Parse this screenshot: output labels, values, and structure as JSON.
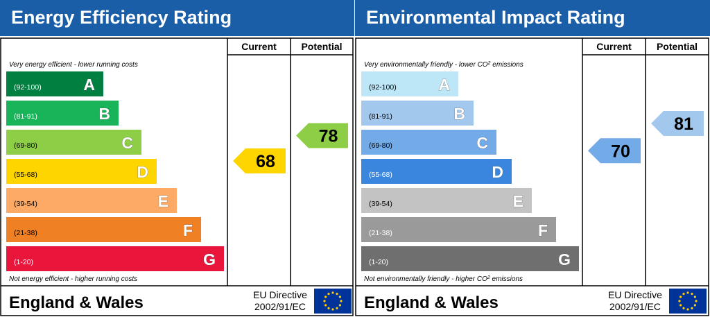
{
  "chart_data": [
    {
      "type": "bar",
      "title": "Energy Efficiency Rating",
      "columns": {
        "current": "Current",
        "potential": "Potential"
      },
      "top_note": "Very energy efficient - lower running costs",
      "bottom_note": "Not energy efficient - higher running costs",
      "bands": [
        {
          "letter": "A",
          "range": "(92-100)",
          "color": "#008040"
        },
        {
          "letter": "B",
          "range": "(81-91)",
          "color": "#19b459"
        },
        {
          "letter": "C",
          "range": "(69-80)",
          "color": "#8dce46"
        },
        {
          "letter": "D",
          "range": "(55-68)",
          "color": "#ffd500"
        },
        {
          "letter": "E",
          "range": "(39-54)",
          "color": "#fcaa65"
        },
        {
          "letter": "F",
          "range": "(21-38)",
          "color": "#ef8023"
        },
        {
          "letter": "G",
          "range": "(1-20)",
          "color": "#e9153b"
        }
      ],
      "current": {
        "value": 68,
        "band": "D",
        "color": "#ffd500"
      },
      "potential": {
        "value": 78,
        "band": "C",
        "color": "#8dce46"
      },
      "footer": {
        "region": "England & Wales",
        "directive_line1": "EU Directive",
        "directive_line2": "2002/91/EC"
      }
    },
    {
      "type": "bar",
      "title": "Environmental Impact Rating",
      "columns": {
        "current": "Current",
        "potential": "Potential"
      },
      "top_note_prefix": "Very environmentally friendly - lower CO",
      "top_note_sup": "2",
      "top_note_suffix": " emissions",
      "bottom_note_prefix": "Not environmentally friendly - higher CO",
      "bottom_note_sup": "2",
      "bottom_note_suffix": " emissions",
      "bands": [
        {
          "letter": "A",
          "range": "(92-100)",
          "color": "#bde6f7"
        },
        {
          "letter": "B",
          "range": "(81-91)",
          "color": "#a3c8ee"
        },
        {
          "letter": "C",
          "range": "(69-80)",
          "color": "#73aae8"
        },
        {
          "letter": "D",
          "range": "(55-68)",
          "color": "#3a86de"
        },
        {
          "letter": "E",
          "range": "(39-54)",
          "color": "#c3c3c3"
        },
        {
          "letter": "F",
          "range": "(21-38)",
          "color": "#9a9a9a"
        },
        {
          "letter": "G",
          "range": "(1-20)",
          "color": "#6f6f6f"
        }
      ],
      "current": {
        "value": 70,
        "band": "C",
        "color": "#73aae8"
      },
      "potential": {
        "value": 81,
        "band": "B",
        "color": "#a3c8ee"
      },
      "footer": {
        "region": "England & Wales",
        "directive_line1": "EU Directive",
        "directive_line2": "2002/91/EC"
      }
    }
  ],
  "colors": {
    "header_blue": "#1b5ea8",
    "border": "#000000",
    "eu_flag": "#003399",
    "eu_stars": "#ffcc00"
  }
}
